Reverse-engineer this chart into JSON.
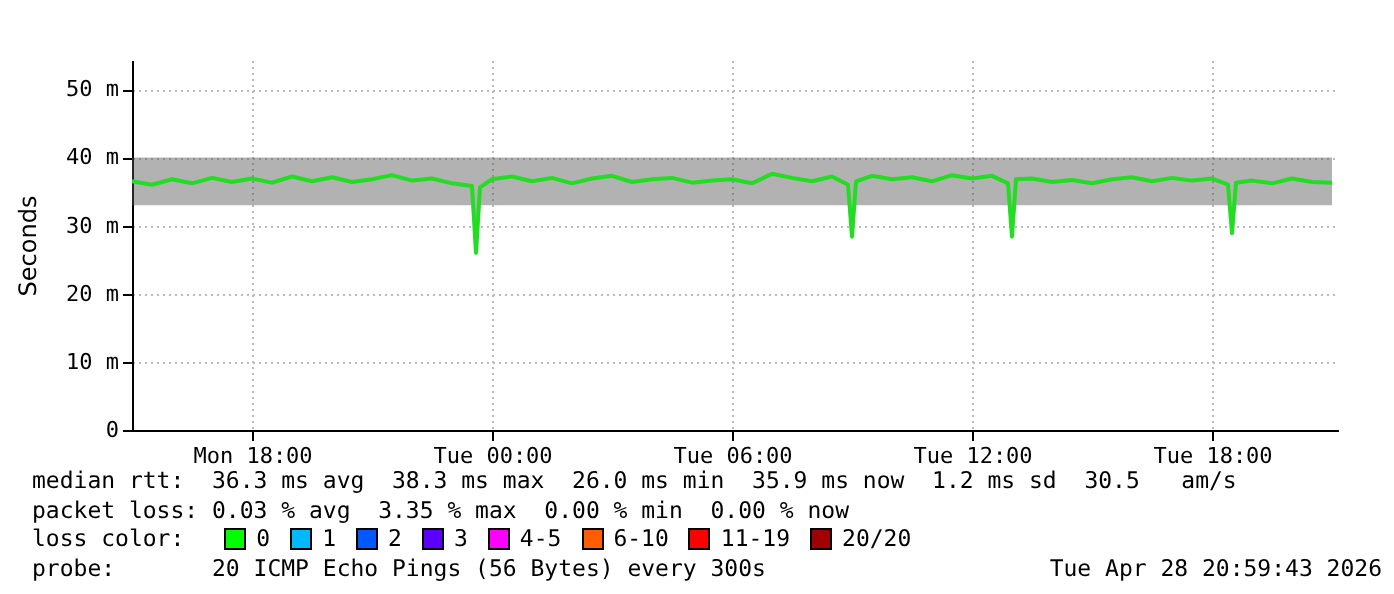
{
  "chart_data": {
    "type": "line",
    "ylabel": "Seconds",
    "xlim": [
      "2026-04-27T15:00",
      "2026-04-28T21:09"
    ],
    "ylim": [
      0,
      54.3
    ],
    "xticks": [
      {
        "value": "2026-04-27T18:00",
        "label": "Mon 18:00"
      },
      {
        "value": "2026-04-28T00:00",
        "label": "Tue 00:00"
      },
      {
        "value": "2026-04-28T06:00",
        "label": "Tue 06:00"
      },
      {
        "value": "2026-04-28T12:00",
        "label": "Tue 12:00"
      },
      {
        "value": "2026-04-28T18:00",
        "label": "Tue 18:00"
      }
    ],
    "yticks": [
      0,
      {
        "value": 10,
        "label": "10 m"
      },
      {
        "value": 20,
        "label": "20 m"
      },
      {
        "value": 30,
        "label": "30 m"
      },
      {
        "value": 40,
        "label": "40 m"
      },
      {
        "value": 50,
        "label": "50 m"
      }
    ],
    "grid": true,
    "x": [
      "2026-04-27T15:00",
      "2026-04-27T15:30",
      "2026-04-27T16:00",
      "2026-04-27T16:30",
      "2026-04-27T17:00",
      "2026-04-27T17:30",
      "2026-04-27T18:00",
      "2026-04-27T18:30",
      "2026-04-27T19:00",
      "2026-04-27T19:30",
      "2026-04-27T20:00",
      "2026-04-27T20:30",
      "2026-04-27T21:00",
      "2026-04-27T21:30",
      "2026-04-27T22:00",
      "2026-04-27T22:30",
      "2026-04-27T23:00",
      "2026-04-27T23:30",
      "2026-04-27T23:36",
      "2026-04-27T23:42",
      "2026-04-28T00:00",
      "2026-04-28T00:30",
      "2026-04-28T01:00",
      "2026-04-28T01:30",
      "2026-04-28T02:00",
      "2026-04-28T02:30",
      "2026-04-28T03:00",
      "2026-04-28T03:30",
      "2026-04-28T04:00",
      "2026-04-28T04:30",
      "2026-04-28T05:00",
      "2026-04-28T05:30",
      "2026-04-28T06:00",
      "2026-04-28T06:30",
      "2026-04-28T07:00",
      "2026-04-28T07:30",
      "2026-04-28T08:00",
      "2026-04-28T08:30",
      "2026-04-28T08:54",
      "2026-04-28T09:00",
      "2026-04-28T09:06",
      "2026-04-28T09:30",
      "2026-04-28T10:00",
      "2026-04-28T10:30",
      "2026-04-28T11:00",
      "2026-04-28T11:30",
      "2026-04-28T12:00",
      "2026-04-28T12:30",
      "2026-04-28T12:54",
      "2026-04-28T13:00",
      "2026-04-28T13:06",
      "2026-04-28T13:30",
      "2026-04-28T14:00",
      "2026-04-28T14:30",
      "2026-04-28T15:00",
      "2026-04-28T15:30",
      "2026-04-28T16:00",
      "2026-04-28T16:30",
      "2026-04-28T17:00",
      "2026-04-28T17:30",
      "2026-04-28T18:00",
      "2026-04-28T18:24",
      "2026-04-28T18:30",
      "2026-04-28T18:36",
      "2026-04-28T19:00",
      "2026-04-28T19:30",
      "2026-04-28T20:00",
      "2026-04-28T20:30",
      "2026-04-28T21:00"
    ],
    "series": [
      {
        "color": "#22dd22",
        "values": [
          36.5,
          36,
          36.8,
          36.2,
          37,
          36.4,
          36.9,
          36.3,
          37.2,
          36.5,
          37.1,
          36.4,
          36.8,
          37.4,
          36.6,
          36.9,
          36.2,
          35.8,
          26,
          35.6,
          36.8,
          37.2,
          36.5,
          37,
          36.2,
          36.9,
          37.3,
          36.4,
          36.8,
          37,
          36.3,
          36.6,
          36.8,
          36.2,
          37.6,
          37,
          36.5,
          37.2,
          36,
          28.4,
          36.5,
          37.3,
          36.8,
          37.1,
          36.5,
          37.4,
          36.9,
          37.3,
          36.2,
          28.4,
          36.8,
          36.9,
          36.4,
          36.7,
          36.2,
          36.8,
          37.1,
          36.5,
          37,
          36.6,
          36.9,
          36,
          28.9,
          36.3,
          36.6,
          36.2,
          36.9,
          36.4,
          36.3
        ],
        "lower": [
          33,
          33,
          33,
          33,
          33,
          33,
          33,
          33,
          33,
          33,
          33,
          33,
          33,
          33,
          33,
          33,
          33,
          33,
          25.5,
          33,
          33,
          33,
          33,
          33,
          33,
          33,
          33,
          33,
          33,
          33,
          33,
          33,
          33,
          33,
          33,
          33,
          33,
          33,
          33,
          27.8,
          33,
          33,
          33,
          33,
          33,
          33,
          33,
          33,
          33,
          27.8,
          33,
          33,
          33,
          33,
          33,
          33,
          33,
          33,
          33,
          33,
          33,
          33,
          28.3,
          33,
          33,
          33,
          33,
          33,
          33
        ],
        "upper": [
          40,
          40,
          40,
          40,
          40,
          40,
          40,
          40,
          40,
          40,
          40,
          40,
          40,
          40,
          40,
          40,
          40,
          40,
          40,
          40,
          40,
          40,
          40,
          40,
          40,
          40,
          40,
          40,
          40,
          40,
          40,
          40,
          40,
          40,
          40,
          40,
          40,
          40,
          40,
          40,
          40,
          40,
          40,
          40,
          40,
          40,
          40,
          40,
          40,
          40,
          40,
          40,
          40,
          40,
          40,
          40,
          40,
          40,
          40,
          40,
          40,
          40,
          40,
          40,
          40,
          40,
          40,
          40,
          40
        ]
      }
    ],
    "annotations": [
      "median rtt:  36.3 ms avg  38.3 ms max  26.0 ms min  35.9 ms now  1.2 ms sd  30.5   am/s",
      "packet loss: 0.03 % avg  3.35 % max  0.00 % min  0.00 % now",
      "loss color:",
      "0",
      "1",
      "2",
      "3",
      "4-5",
      "6-10",
      "11-19",
      "20/20",
      "probe:       20 ICMP Echo Pings (56 Bytes) every 300s",
      "Tue Apr 28 20:59:43 2026"
    ]
  }
}
